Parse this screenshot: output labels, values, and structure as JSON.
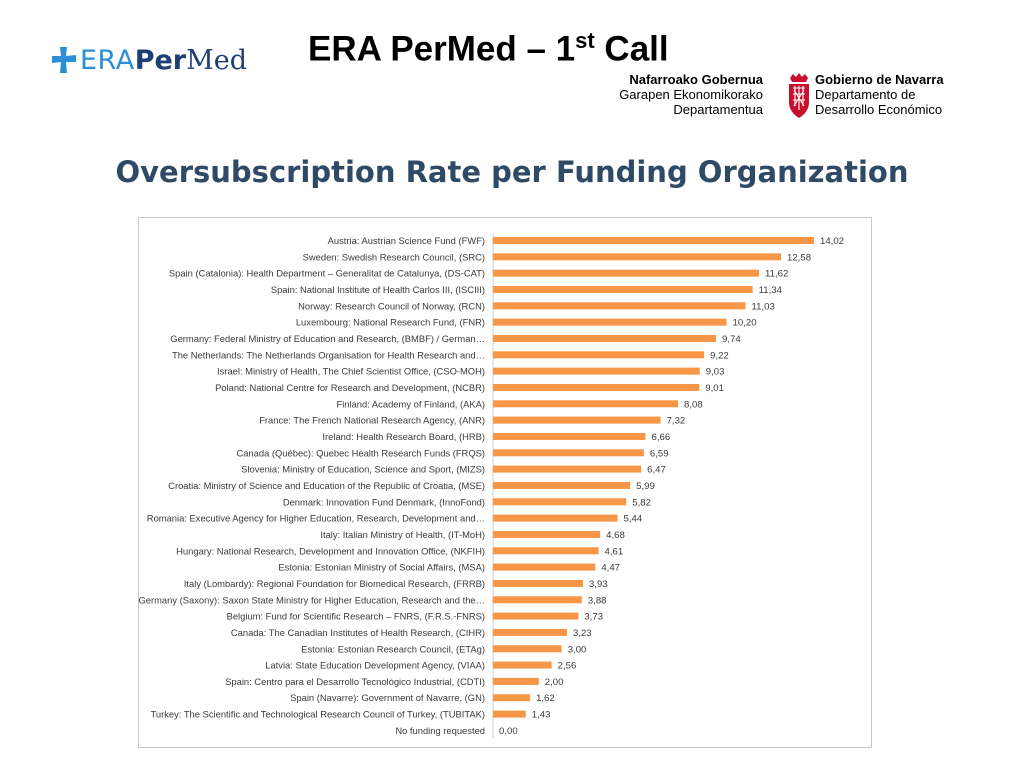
{
  "header": {
    "logo": {
      "part1": "ERA",
      "part2": "Per",
      "part3": "Med",
      "icon": "plus-cross-icon"
    },
    "title_main": "ERA PerMed – 1",
    "title_sup": "st",
    "title_end": " Call"
  },
  "navarra_logo": {
    "left_line1": "Nafarroako Gobernua",
    "left_line2": "Garapen Ekonomikorako",
    "left_line3": "Departamentua",
    "right_line1": "Gobierno de Navarra",
    "right_line2": "Departamento de",
    "right_line3": "Desarrollo Económico",
    "icon": "navarra-crest-icon",
    "crest_color": "#c8102e"
  },
  "chart_data": {
    "type": "bar",
    "orientation": "horizontal",
    "title": "Oversubscription Rate per Funding Organization",
    "bar_color": "#f79646",
    "xlim": [
      0,
      14.02
    ],
    "grid": false,
    "legend": "none",
    "categories": [
      "Austria: Austrian Science Fund (FWF)",
      "Sweden: Swedish Research Council, (SRC)",
      "Spain (Catalonia): Health Department – Generalitat de Catalunya, (DS-CAT)",
      "Spain: National Institute of Health Carlos III, (ISCIII)",
      "Norway: Research Council of Norway, (RCN)",
      "Luxembourg: National Research Fund, (FNR)",
      "Germany: Federal Ministry of Education and Research, (BMBF) / German…",
      "The Netherlands: The Netherlands Organisation for Health Research and…",
      "Israel: Ministry of Health, The Chief Scientist Office, (CSO-MOH)",
      "Poland: National Centre for Research and Development, (NCBR)",
      "Finland: Academy of Finland, (AKA)",
      "France: The French National Research Agency, (ANR)",
      "Ireland: Health Research Board, (HRB)",
      "Canada (Québec): Quebec Health Research Funds (FRQS)",
      "Slovenia: Ministry of Education, Science and Sport, (MIZS)",
      "Croatia: Ministry of Science and Education of the Republic of Croatia, (MSE)",
      "Denmark: Innovation Fund Denmark, (InnoFond)",
      "Romania: Executive Agency for Higher Education, Research, Development and…",
      "Italy: Italian Ministry of Health, (IT-MoH)",
      "Hungary: National Research, Development and Innovation Office, (NKFIH)",
      "Estonia: Estonian Ministry of Social Affairs, (MSA)",
      "Italy (Lombardy): Regional Foundation for Biomedical Research, (FRRB)",
      "Germany (Saxony): Saxon State Ministry for Higher Education, Research and the…",
      "Belgium: Fund for Scientific Research – FNRS, (F.R.S.-FNRS)",
      "Canada: The Canadian Institutes of Health Research, (CIHR)",
      "Estonia: Estonian Research Council, (ETAg)",
      "Latvia: State Education Development Agency, (VIAA)",
      "Spain: Centro para el Desarrollo Tecnológico Industrial, (CDTI)",
      "Spain (Navarre): Government of Navarre, (GN)",
      "Turkey: The Scientific and Technological Research Council of Turkey, (TUBITAK)",
      "No funding requested"
    ],
    "values": [
      14.02,
      12.58,
      11.62,
      11.34,
      11.03,
      10.2,
      9.74,
      9.22,
      9.03,
      9.01,
      8.08,
      7.32,
      6.66,
      6.59,
      6.47,
      5.99,
      5.82,
      5.44,
      4.68,
      4.61,
      4.47,
      3.93,
      3.88,
      3.73,
      3.23,
      3.0,
      2.56,
      2.0,
      1.62,
      1.43,
      0.0
    ],
    "value_labels": [
      "14,02",
      "12,58",
      "11,62",
      "11,34",
      "11,03",
      "10,20",
      "9,74",
      "9,22",
      "9,03",
      "9,01",
      "8,08",
      "7,32",
      "6,66",
      "6,59",
      "6,47",
      "5,99",
      "5,82",
      "5,44",
      "4,68",
      "4,61",
      "4,47",
      "3,93",
      "3,88",
      "3,73",
      "3,23",
      "3,00",
      "2,56",
      "2,00",
      "1,62",
      "1,43",
      "0,00"
    ]
  }
}
